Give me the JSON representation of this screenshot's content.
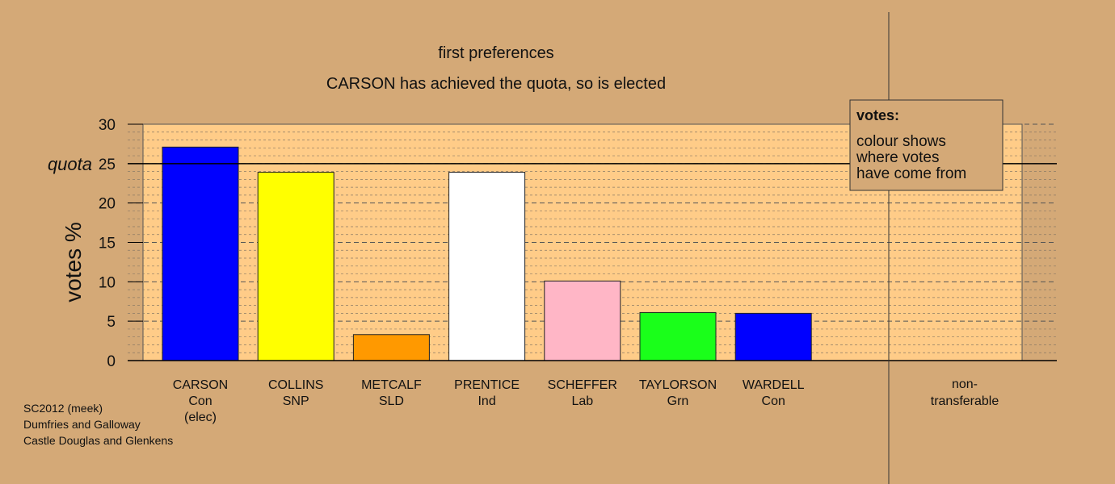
{
  "chart_data": {
    "type": "bar",
    "title": "first preferences",
    "subtitle": "CARSON has achieved the quota, so is elected",
    "ylabel": "votes %",
    "ylim": [
      0,
      30
    ],
    "yticks": [
      0,
      5,
      10,
      15,
      20,
      25,
      30
    ],
    "quota": {
      "label": "quota",
      "value": 25
    },
    "grid": true,
    "categories": [
      {
        "name": "CARSON",
        "party": "Con",
        "note": "(elec)",
        "value": 27.1,
        "color": "#0000ff"
      },
      {
        "name": "COLLINS",
        "party": "SNP",
        "note": "",
        "value": 23.9,
        "color": "#ffff00"
      },
      {
        "name": "METCALF",
        "party": "SLD",
        "note": "",
        "value": 3.3,
        "color": "#ff9900"
      },
      {
        "name": "PRENTICE",
        "party": "Ind",
        "note": "",
        "value": 23.9,
        "color": "#ffffff"
      },
      {
        "name": "SCHEFFER",
        "party": "Lab",
        "note": "",
        "value": 10.1,
        "color": "#ffb6c6"
      },
      {
        "name": "TAYLORSON",
        "party": "Grn",
        "note": "",
        "value": 6.1,
        "color": "#1aff1a"
      },
      {
        "name": "WARDELL",
        "party": "Con",
        "note": "",
        "value": 6.0,
        "color": "#0000ff"
      }
    ],
    "non_transferable": {
      "label_line1": "non-",
      "label_line2": "transferable",
      "value": 0
    },
    "legend": {
      "title": "votes:",
      "lines": [
        "colour shows",
        "where votes",
        "have come from"
      ],
      "placement": "top-right"
    }
  },
  "footer": {
    "lines": [
      "SC2012 (meek)",
      "Dumfries and Galloway",
      "Castle Douglas and Glenkens"
    ]
  },
  "colors": {
    "background": "#d4a977",
    "plot_area": "#ffcc88"
  }
}
